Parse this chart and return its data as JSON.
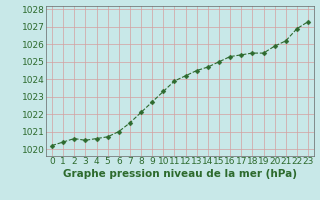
{
  "x": [
    0,
    1,
    2,
    3,
    4,
    5,
    6,
    7,
    8,
    9,
    10,
    11,
    12,
    13,
    14,
    15,
    16,
    17,
    18,
    19,
    20,
    21,
    22,
    23
  ],
  "y": [
    1020.2,
    1020.4,
    1020.6,
    1020.5,
    1020.6,
    1020.7,
    1021.0,
    1021.5,
    1022.1,
    1022.7,
    1023.3,
    1023.9,
    1024.2,
    1024.5,
    1024.7,
    1025.0,
    1025.3,
    1025.4,
    1025.5,
    1025.5,
    1025.9,
    1026.2,
    1026.9,
    1027.3
  ],
  "line_color": "#2d6a2d",
  "marker": "D",
  "marker_size": 2.5,
  "background_color": "#c8e8e8",
  "grid_color": "#d4a0a0",
  "xlabel": "Graphe pression niveau de la mer (hPa)",
  "xlabel_fontsize": 7.5,
  "xlabel_color": "#2d6a2d",
  "tick_label_color": "#2d6a2d",
  "tick_fontsize": 6.5,
  "ylim": [
    1019.6,
    1028.2
  ],
  "yticks": [
    1020,
    1021,
    1022,
    1023,
    1024,
    1025,
    1026,
    1027,
    1028
  ],
  "xlim": [
    -0.5,
    23.5
  ]
}
